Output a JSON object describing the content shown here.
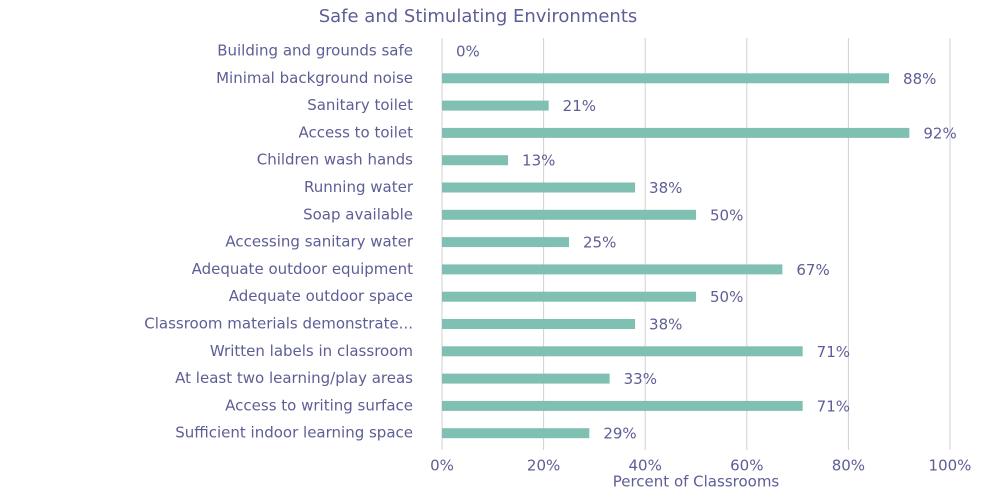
{
  "chart_data": {
    "type": "bar",
    "orientation": "horizontal",
    "title": "Safe and Stimulating Environments",
    "x_label": "Percent of Classrooms",
    "categories": [
      "Building and grounds safe",
      "Minimal background noise",
      "Sanitary toilet",
      "Access to toilet",
      "Children wash hands",
      "Running water",
      "Soap available",
      "Accessing sanitary water",
      "Adequate outdoor equipment",
      "Adequate outdoor space",
      "Classroom materials demonstrate...",
      "Written labels in classroom",
      "At least two learning/play areas",
      "Access to writing surface",
      "Sufficient indoor learning space"
    ],
    "values": [
      0,
      88,
      21,
      92,
      13,
      38,
      50,
      25,
      67,
      50,
      38,
      71,
      33,
      71,
      29
    ],
    "value_labels": [
      "0%",
      "88%",
      "21%",
      "92%",
      "13%",
      "38%",
      "50%",
      "25%",
      "67%",
      "50%",
      "38%",
      "71%",
      "33%",
      "71%",
      "29%"
    ],
    "color": "#7fc0b2",
    "xlim": [
      0,
      100
    ],
    "xticks": [
      {
        "value": 0,
        "label": "0%"
      },
      {
        "value": 20,
        "label": "20%"
      },
      {
        "value": 40,
        "label": "40%"
      },
      {
        "value": 60,
        "label": "60%"
      },
      {
        "value": 80,
        "label": "80%"
      },
      {
        "value": 100,
        "label": "100%"
      }
    ],
    "grid": true
  }
}
